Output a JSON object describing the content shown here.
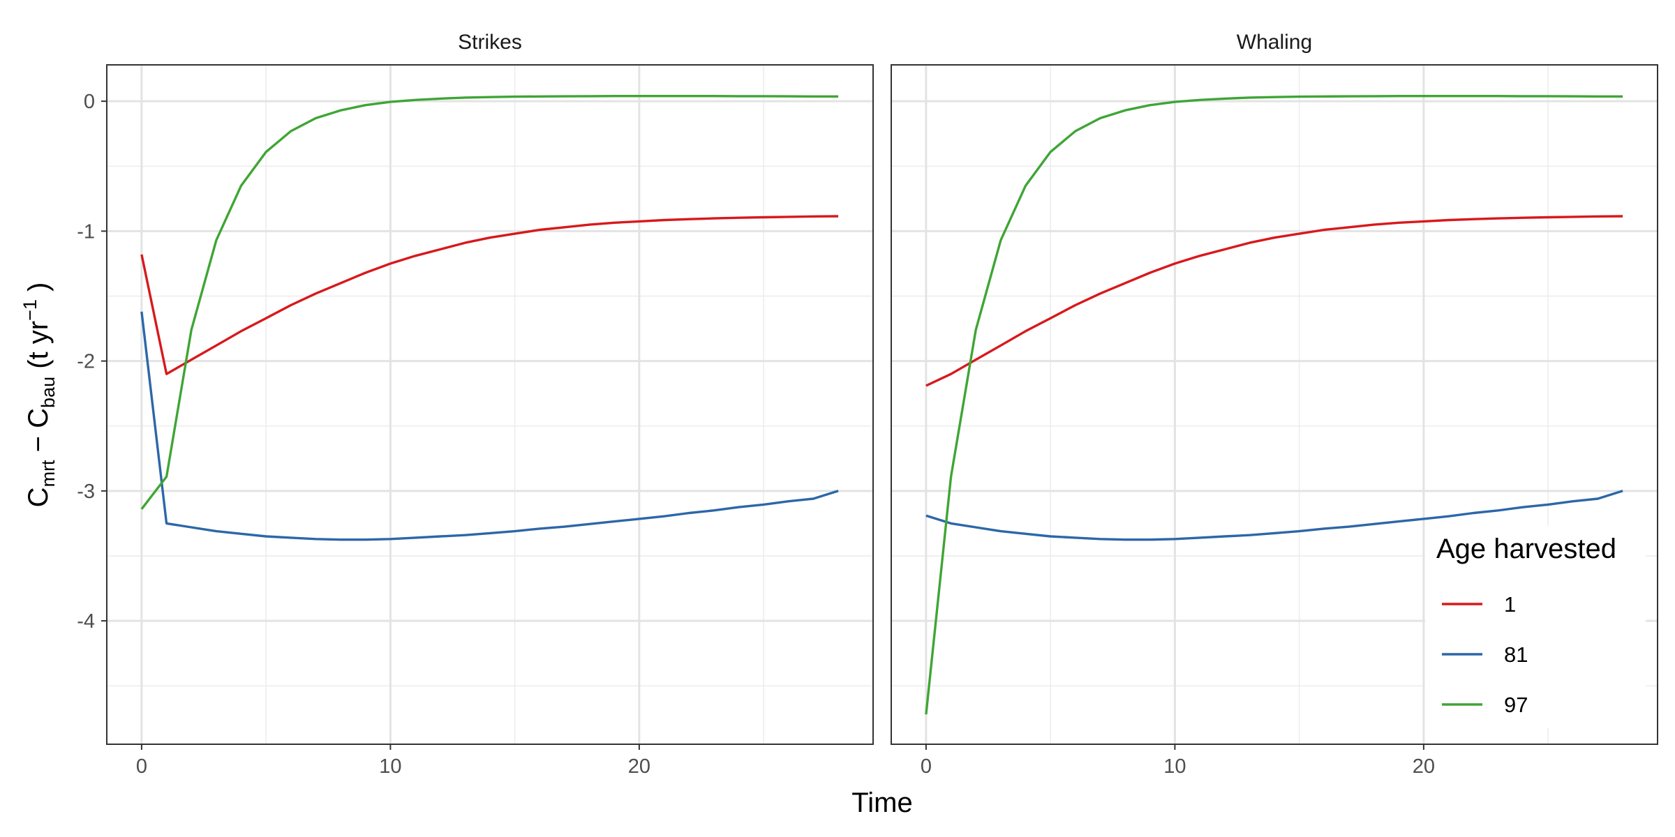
{
  "chart_data": {
    "type": "line",
    "xlabel": "Time",
    "ylabel": {
      "base1": "C",
      "sub1": "mrt",
      "minus": " − ",
      "base2": "C",
      "sub2": "bau",
      "unit_open": " (t yr",
      "unit_sup": "−1",
      "unit_close": " )"
    },
    "xlim": [
      -1.4,
      29.4
    ],
    "ylim": [
      -4.95,
      0.28
    ],
    "x_ticks": [
      0,
      10,
      20
    ],
    "y_ticks": [
      0,
      -1,
      -2,
      -3,
      -4
    ],
    "y_tick_labels": [
      "0",
      "-1",
      "-2",
      "-3",
      "-4"
    ],
    "grid": true,
    "legend": {
      "title": "Age harvested",
      "position": "bottom-right",
      "entries": [
        "1",
        "81",
        "97"
      ]
    },
    "series_colors": {
      "1": "#d7191c",
      "81": "#2c67a8",
      "97": "#3fa535"
    },
    "x": [
      0,
      1,
      2,
      3,
      4,
      5,
      6,
      7,
      8,
      9,
      10,
      11,
      12,
      13,
      14,
      15,
      16,
      17,
      18,
      19,
      20,
      21,
      22,
      23,
      24,
      25,
      26,
      27,
      28
    ],
    "panels": [
      {
        "title": "Strikes",
        "series": [
          {
            "name": "1",
            "values": [
              -1.18,
              -2.1,
              -1.99,
              -1.88,
              -1.77,
              -1.67,
              -1.57,
              -1.48,
              -1.4,
              -1.32,
              -1.25,
              -1.19,
              -1.14,
              -1.09,
              -1.05,
              -1.02,
              -0.99,
              -0.97,
              -0.95,
              -0.935,
              -0.925,
              -0.915,
              -0.908,
              -0.902,
              -0.897,
              -0.893,
              -0.89,
              -0.887,
              -0.885
            ]
          },
          {
            "name": "81",
            "values": [
              -1.62,
              -3.25,
              -3.28,
              -3.31,
              -3.33,
              -3.35,
              -3.36,
              -3.37,
              -3.375,
              -3.375,
              -3.37,
              -3.36,
              -3.35,
              -3.34,
              -3.325,
              -3.31,
              -3.29,
              -3.275,
              -3.255,
              -3.235,
              -3.215,
              -3.195,
              -3.17,
              -3.15,
              -3.125,
              -3.105,
              -3.08,
              -3.06,
              -3.0
            ]
          },
          {
            "name": "97",
            "values": [
              -3.14,
              -2.89,
              -1.76,
              -1.07,
              -0.65,
              -0.39,
              -0.23,
              -0.13,
              -0.07,
              -0.03,
              -0.005,
              0.01,
              0.02,
              0.028,
              0.032,
              0.035,
              0.037,
              0.038,
              0.039,
              0.04,
              0.04,
              0.04,
              0.04,
              0.04,
              0.039,
              0.039,
              0.038,
              0.037,
              0.037
            ]
          }
        ]
      },
      {
        "title": "Whaling",
        "series": [
          {
            "name": "1",
            "values": [
              -2.19,
              -2.1,
              -1.99,
              -1.88,
              -1.77,
              -1.67,
              -1.57,
              -1.48,
              -1.4,
              -1.32,
              -1.25,
              -1.19,
              -1.14,
              -1.09,
              -1.05,
              -1.02,
              -0.99,
              -0.97,
              -0.95,
              -0.935,
              -0.925,
              -0.915,
              -0.908,
              -0.902,
              -0.897,
              -0.893,
              -0.89,
              -0.887,
              -0.885
            ]
          },
          {
            "name": "81",
            "values": [
              -3.19,
              -3.25,
              -3.28,
              -3.31,
              -3.33,
              -3.35,
              -3.36,
              -3.37,
              -3.375,
              -3.375,
              -3.37,
              -3.36,
              -3.35,
              -3.34,
              -3.325,
              -3.31,
              -3.29,
              -3.275,
              -3.255,
              -3.235,
              -3.215,
              -3.195,
              -3.17,
              -3.15,
              -3.125,
              -3.105,
              -3.08,
              -3.06,
              -3.0
            ]
          },
          {
            "name": "97",
            "values": [
              -4.72,
              -2.89,
              -1.76,
              -1.07,
              -0.65,
              -0.39,
              -0.23,
              -0.13,
              -0.07,
              -0.03,
              -0.005,
              0.01,
              0.02,
              0.028,
              0.032,
              0.035,
              0.037,
              0.038,
              0.039,
              0.04,
              0.04,
              0.04,
              0.04,
              0.04,
              0.039,
              0.039,
              0.038,
              0.037,
              0.037
            ]
          }
        ]
      }
    ]
  }
}
